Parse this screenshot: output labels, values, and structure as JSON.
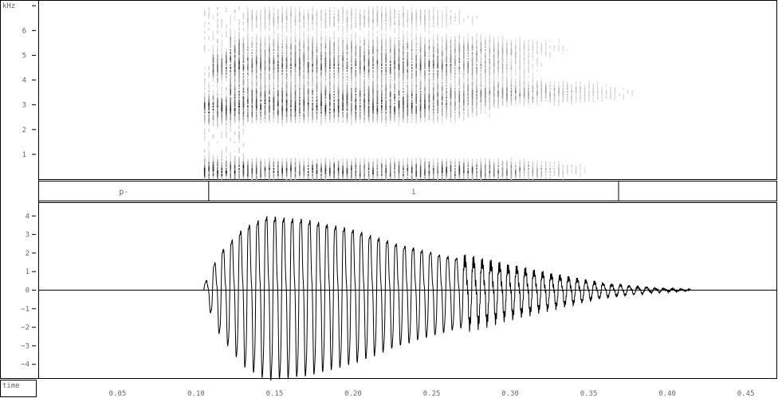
{
  "chart_data": [
    {
      "type": "heatmap",
      "name": "spectrogram",
      "yunit": "kHz",
      "ylim": [
        0,
        7.2
      ],
      "yticks": [
        1,
        2,
        3,
        4,
        5,
        6
      ],
      "xlim": [
        0.0,
        0.47
      ],
      "onset": 0.105,
      "offset": 0.42,
      "formant_bands": [
        {
          "center_khz": 0.35,
          "start": 0.105,
          "end": 0.36,
          "strength": 0.95
        },
        {
          "center_khz": 2.85,
          "start": 0.105,
          "end": 0.3,
          "strength": 0.85
        },
        {
          "center_khz": 3.5,
          "start": 0.12,
          "end": 0.4,
          "strength": 0.55
        },
        {
          "center_khz": 4.55,
          "start": 0.11,
          "end": 0.33,
          "strength": 0.75
        },
        {
          "center_khz": 5.3,
          "start": 0.12,
          "end": 0.36,
          "strength": 0.45
        },
        {
          "center_khz": 6.5,
          "start": 0.13,
          "end": 0.3,
          "strength": 0.35
        }
      ]
    },
    {
      "type": "line",
      "name": "waveform",
      "ylim": [
        -4.8,
        4.8
      ],
      "yticks": [
        4,
        3,
        2,
        1,
        0,
        -1,
        -2,
        -3,
        -4
      ],
      "ytick_labels": [
        "4",
        "3",
        "2",
        "1",
        "0",
        "−1",
        "−2",
        "−3",
        "−4"
      ],
      "xlim": [
        0.0,
        0.47
      ],
      "onset": 0.105,
      "offset": 0.415,
      "period": 0.0055,
      "envelope": [
        {
          "t": 0.105,
          "a": 0.3
        },
        {
          "t": 0.115,
          "a": 2.2
        },
        {
          "t": 0.13,
          "a": 3.7
        },
        {
          "t": 0.145,
          "a": 4.4
        },
        {
          "t": 0.17,
          "a": 4.2
        },
        {
          "t": 0.2,
          "a": 3.6
        },
        {
          "t": 0.23,
          "a": 2.7
        },
        {
          "t": 0.26,
          "a": 2.0
        },
        {
          "t": 0.3,
          "a": 1.3
        },
        {
          "t": 0.33,
          "a": 0.8
        },
        {
          "t": 0.36,
          "a": 0.35
        },
        {
          "t": 0.39,
          "a": 0.12
        },
        {
          "t": 0.415,
          "a": 0.02
        }
      ]
    }
  ],
  "segments": [
    {
      "label": "p-",
      "start": 0.0,
      "end": 0.108
    },
    {
      "label": "i",
      "start": 0.108,
      "end": 0.369
    }
  ],
  "time_axis": {
    "label": "time",
    "ticks": [
      0.05,
      0.1,
      0.15,
      0.2,
      0.25,
      0.3,
      0.35,
      0.4,
      0.45
    ],
    "tick_labels": [
      "0.05",
      "0.10",
      "0.15",
      "0.20",
      "0.25",
      "0.30",
      "0.35",
      "0.40",
      "0.45"
    ]
  },
  "colors": {
    "ink": "#000000",
    "label": "#666666",
    "background": "#ffffff"
  }
}
